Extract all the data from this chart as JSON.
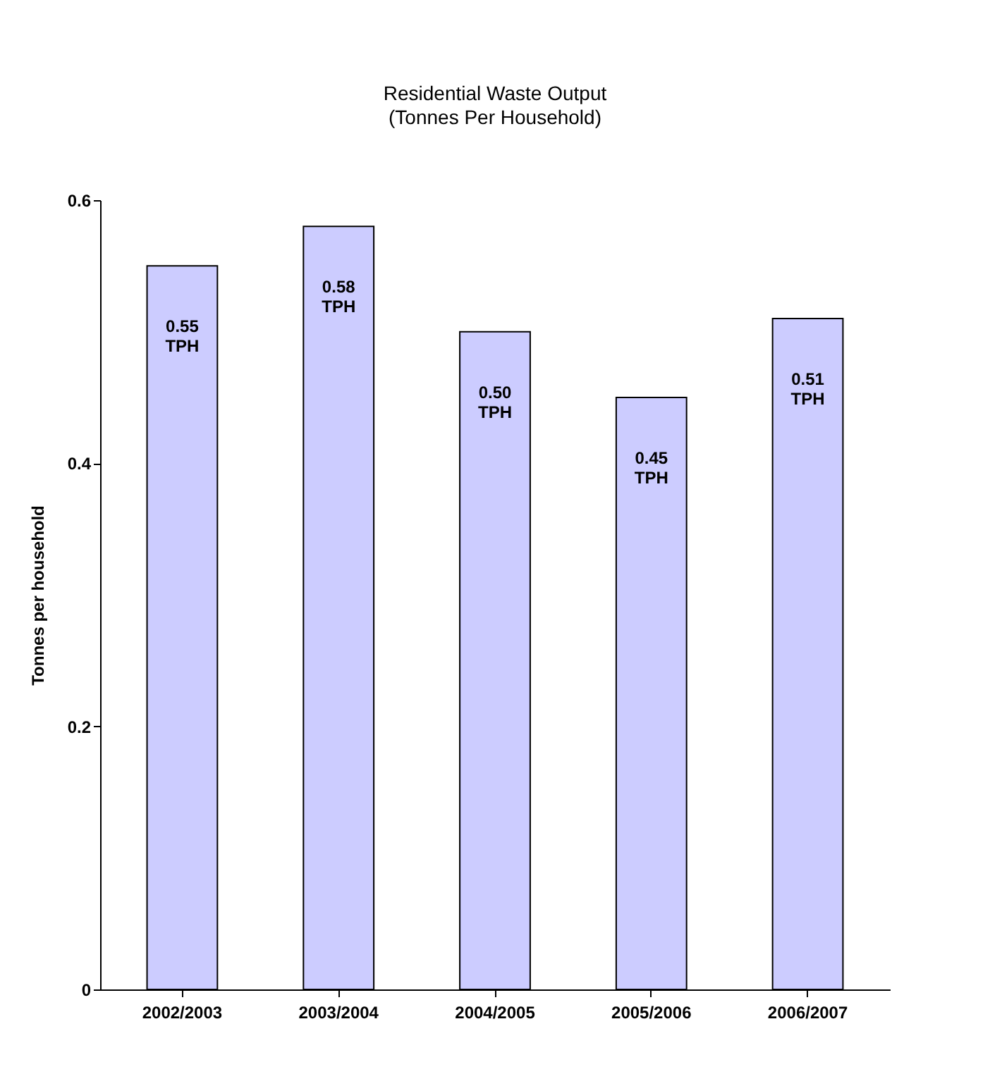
{
  "chart_data": {
    "type": "bar",
    "title": "Residential Waste Output",
    "subtitle": "(Tonnes Per Household)",
    "ylabel": "Tonnes per household",
    "categories": [
      "2002/2003",
      "2003/2004",
      "2004/2005",
      "2005/2006",
      "2006/2007"
    ],
    "values": [
      0.55,
      0.58,
      0.5,
      0.45,
      0.51
    ],
    "value_labels": [
      "0.55 TPH",
      "0.58 TPH",
      "0.50 TPH",
      "0.45 TPH",
      "0.51 TPH"
    ],
    "color": "#ccccff",
    "ylim": [
      0,
      0.6
    ],
    "yticks": [
      0,
      0.2,
      0.4,
      0.6
    ],
    "grid": false
  }
}
